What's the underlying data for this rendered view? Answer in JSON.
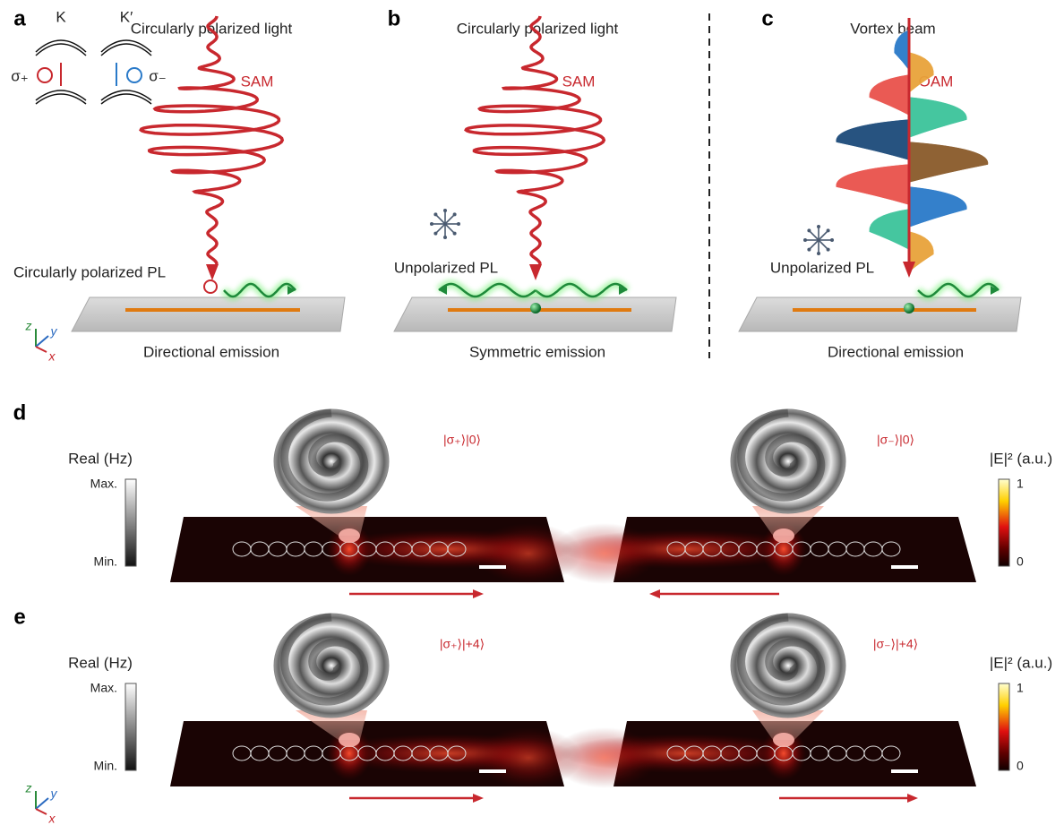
{
  "panel_a": {
    "label": "a",
    "title": "Circularly polarized light",
    "beam_label": "SAM",
    "valley_k": "K",
    "valley_k_prime": "K′",
    "sigma_plus": "σ₊",
    "sigma_minus": "σ₋",
    "pl_label": "Circularly polarized PL",
    "caption": "Directional emission",
    "axes": {
      "z": "z",
      "y": "y",
      "x": "x"
    }
  },
  "panel_b": {
    "label": "b",
    "title": "Circularly polarized light",
    "beam_label": "SAM",
    "pl_label": "Unpolarized PL",
    "caption": "Symmetric emission"
  },
  "panel_c": {
    "label": "c",
    "title": "Vortex beam",
    "beam_label": "OAM",
    "pl_label": "Unpolarized PL",
    "caption": "Directional emission"
  },
  "panel_d": {
    "label": "d",
    "left_colorbar": {
      "title": "Real (Hz)",
      "max": "Max.",
      "min": "Min."
    },
    "states": [
      "|σ₊⟩|0⟩",
      "|σ₋⟩|0⟩"
    ],
    "right_colorbar": {
      "title": "|E|² (a.u.)",
      "max": "1",
      "min": "0"
    }
  },
  "panel_e": {
    "label": "e",
    "left_colorbar": {
      "title": "Real (Hz)",
      "max": "Max.",
      "min": "Min."
    },
    "states": [
      "|σ₊⟩|+4⟩",
      "|σ₋⟩|+4⟩"
    ],
    "right_colorbar": {
      "title": "|E|² (a.u.)",
      "max": "1",
      "min": "0"
    },
    "axes": {
      "z": "z",
      "y": "y",
      "x": "x"
    }
  }
}
